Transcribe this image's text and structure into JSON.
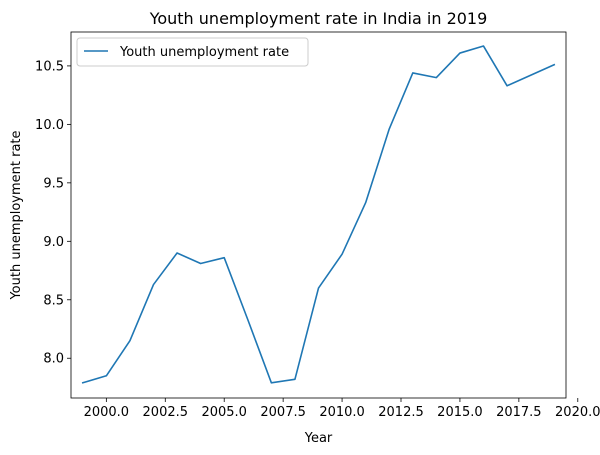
{
  "chart_data": {
    "type": "line",
    "title": "Youth unemployment rate in India in 2019",
    "xlabel": "Year",
    "ylabel": "Youth unemployment rate",
    "xlim": [
      1998.5,
      2019.5
    ],
    "ylim": [
      7.66,
      10.79
    ],
    "xticks": [
      2000.0,
      2002.5,
      2005.0,
      2007.5,
      2010.0,
      2012.5,
      2015.0,
      2017.5,
      2020.0
    ],
    "xtick_labels": [
      "2000.0",
      "2002.5",
      "2005.0",
      "2007.5",
      "2010.0",
      "2012.5",
      "2015.0",
      "2017.5",
      "2020.0"
    ],
    "yticks": [
      8.0,
      8.5,
      9.0,
      9.5,
      10.0,
      10.5
    ],
    "ytick_labels": [
      "8.0",
      "8.5",
      "9.0",
      "9.5",
      "10.0",
      "10.5"
    ],
    "grid": false,
    "legend_position": "top-left",
    "series": [
      {
        "name": "Youth unemployment rate",
        "color": "#1f77b4",
        "x": [
          1999,
          2000,
          2001,
          2002,
          2003,
          2004,
          2005,
          2006,
          2007,
          2008,
          2009,
          2010,
          2011,
          2012,
          2013,
          2014,
          2015,
          2016,
          2017,
          2018,
          2019
        ],
        "y": [
          7.79,
          7.85,
          8.15,
          8.63,
          8.9,
          8.81,
          8.86,
          8.33,
          7.79,
          7.82,
          8.6,
          8.89,
          9.33,
          9.96,
          10.44,
          10.4,
          10.61,
          10.67,
          10.33,
          10.42,
          10.51
        ]
      }
    ]
  }
}
